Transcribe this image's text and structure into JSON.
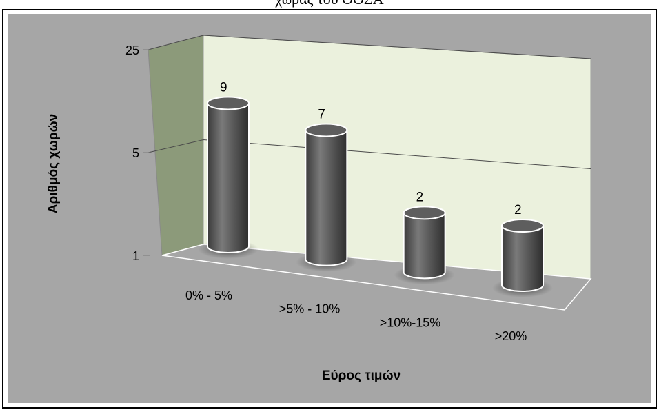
{
  "header": {
    "title_fragment": "χώρας του ΟΟΣΑ"
  },
  "chart_data": {
    "type": "bar",
    "style": "3d-cylinder",
    "scale": "log",
    "categories": [
      "0% - 5%",
      ">5% - 10%",
      ">10%-15%",
      ">20%"
    ],
    "values": [
      9,
      7,
      2,
      2
    ],
    "data_labels": [
      "9",
      "7",
      "2",
      "2"
    ],
    "xlabel": "Εύρος τιμών",
    "ylabel": "Αριθμός χωρών",
    "yticks": [
      "1",
      "5",
      "25"
    ],
    "ylim": [
      1,
      25
    ],
    "grid": true,
    "legend": "none",
    "colors": {
      "bar": "#5a5a5a",
      "back_wall": "#ebf1dd",
      "side_wall": "#8c9a7a",
      "floor": "#a6a6a6",
      "plot_area": "#a6a6a6"
    }
  }
}
